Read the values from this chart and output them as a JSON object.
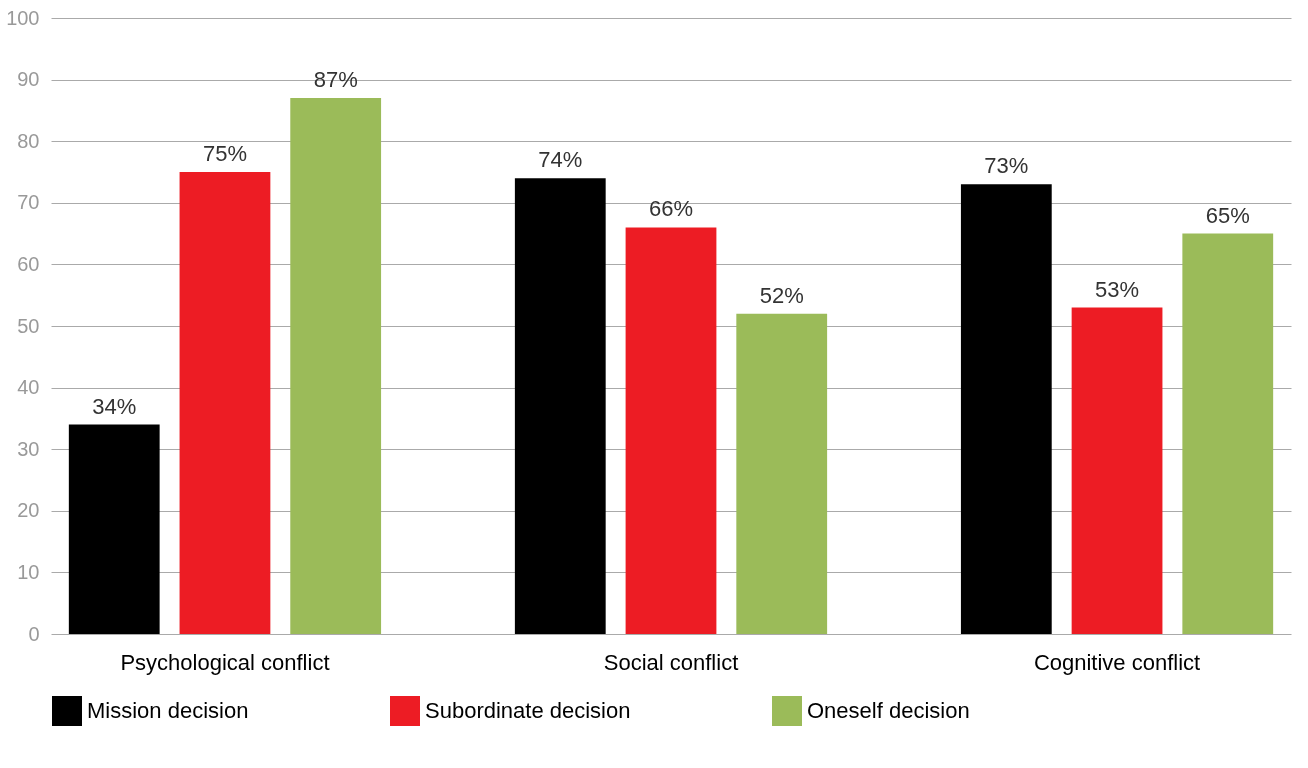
{
  "chart_data": {
    "type": "bar",
    "categories": [
      "Psychological conflict",
      "Social conflict",
      "Cognitive conflict"
    ],
    "series": [
      {
        "name": "Mission decision",
        "color": "#000000",
        "values": [
          34,
          74,
          73
        ],
        "value_labels": [
          "34%",
          "74%",
          "73%"
        ]
      },
      {
        "name": "Subordinate decision",
        "color": "#ed1c24",
        "values": [
          75,
          66,
          53
        ],
        "value_labels": [
          "75%",
          "66%",
          "53%"
        ]
      },
      {
        "name": "Oneself decision",
        "color": "#9bbb59",
        "values": [
          87,
          52,
          65
        ],
        "value_labels": [
          "87%",
          "52%",
          "65%"
        ]
      }
    ],
    "ylim": [
      0,
      100
    ],
    "yticks": [
      0,
      10,
      20,
      30,
      40,
      50,
      60,
      70,
      80,
      90,
      100
    ],
    "grid": "y",
    "legend": "bottom"
  }
}
